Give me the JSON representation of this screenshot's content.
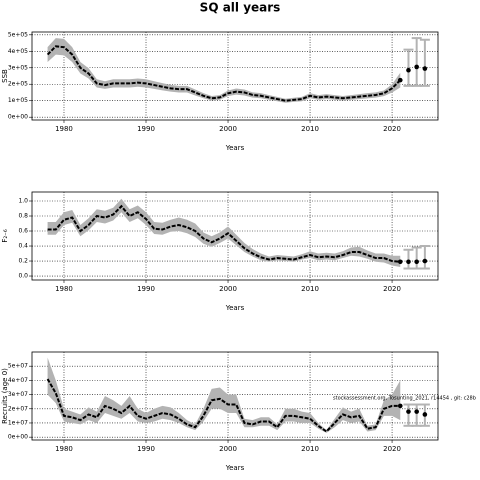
{
  "chart_data": [
    {
      "type": "line",
      "title": "SQ all years",
      "ylabel": "SSB",
      "xlabel": "Years",
      "xlim": [
        1976.1,
        2025.6
      ],
      "xticks": [
        1980,
        1990,
        2000,
        2010,
        2020
      ],
      "ylim": [
        -17000,
        517000
      ],
      "yticks": [
        {
          "value": 0,
          "label": "0e+00"
        },
        {
          "value": 100000,
          "label": "1e+05"
        },
        {
          "value": 200000,
          "label": "2e+05"
        },
        {
          "value": 300000,
          "label": "3e+05"
        },
        {
          "value": 400000,
          "label": "4e+05"
        },
        {
          "value": 500000,
          "label": "5e+05"
        }
      ],
      "grid": true,
      "color": "#000000",
      "band_color": "#b3b3b3",
      "x": [
        1978,
        1979,
        1980,
        1981,
        1982,
        1983,
        1984,
        1985,
        1986,
        1987,
        1988,
        1989,
        1990,
        1991,
        1992,
        1993,
        1994,
        1995,
        1996,
        1997,
        1998,
        1999,
        2000,
        2001,
        2002,
        2003,
        2004,
        2005,
        2006,
        2007,
        2008,
        2009,
        2010,
        2011,
        2012,
        2013,
        2014,
        2015,
        2016,
        2017,
        2018,
        2019,
        2020,
        2021
      ],
      "values": [
        380000.0,
        430000.0,
        425000.0,
        380000.0,
        300000.0,
        265000.0,
        205000.0,
        195000.0,
        205000.0,
        205000.0,
        205000.0,
        210000.0,
        205000.0,
        195000.0,
        185000.0,
        175000.0,
        170000.0,
        170000.0,
        150000.0,
        130000.0,
        115000.0,
        120000.0,
        145000.0,
        155000.0,
        150000.0,
        135000.0,
        130000.0,
        120000.0,
        110000.0,
        100000.0,
        105000.0,
        110000.0,
        130000.0,
        120000.0,
        125000.0,
        120000.0,
        115000.0,
        120000.0,
        125000.0,
        130000.0,
        135000.0,
        145000.0,
        175000.0,
        225000.0
      ],
      "lower": [
        335000.0,
        380000.0,
        375000.0,
        335000.0,
        265000.0,
        235000.0,
        180000.0,
        172000.0,
        180000.0,
        180000.0,
        180000.0,
        185000.0,
        180000.0,
        172000.0,
        163000.0,
        155000.0,
        150000.0,
        150000.0,
        132000.0,
        115000.0,
        101000.0,
        106000.0,
        128000.0,
        137000.0,
        132000.0,
        119000.0,
        115000.0,
        106000.0,
        97000.0,
        88000.0,
        93000.0,
        97000.0,
        115000.0,
        106000.0,
        110000.0,
        106000.0,
        101000.0,
        106000.0,
        110000.0,
        114000.0,
        119000.0,
        128000.0,
        150000.0,
        180000.0
      ],
      "upper": [
        425000.0,
        480000.0,
        475000.0,
        425000.0,
        335000.0,
        297000.0,
        230000.0,
        218000.0,
        230000.0,
        230000.0,
        230000.0,
        235000.0,
        230000.0,
        218000.0,
        207000.0,
        196000.0,
        190000.0,
        190000.0,
        168000.0,
        146000.0,
        129000.0,
        134000.0,
        162000.0,
        174000.0,
        168000.0,
        151000.0,
        146000.0,
        134000.0,
        123000.0,
        112000.0,
        118000.0,
        123000.0,
        146000.0,
        134000.0,
        140000.0,
        134000.0,
        129000.0,
        134000.0,
        140000.0,
        146000.0,
        151000.0,
        162000.0,
        200000.0,
        270000.0
      ],
      "forecast": {
        "x": [
          2021,
          2022,
          2023,
          2024
        ],
        "values": [
          225000.0,
          285000.0,
          305000.0,
          295000.0
        ],
        "lower": [
          null,
          190000.0,
          190000.0,
          190000.0
        ],
        "upper": [
          null,
          410000.0,
          480000.0,
          470000.0
        ]
      }
    },
    {
      "type": "line",
      "ylabel": "F₂₋₆",
      "xlabel": "Years",
      "xlim": [
        1976.1,
        2025.6
      ],
      "xticks": [
        1980,
        1990,
        2000,
        2010,
        2020
      ],
      "ylim": [
        -0.053,
        1.12
      ],
      "yticks": [
        {
          "value": 0,
          "label": "0.0"
        },
        0.2,
        0.4,
        0.6,
        0.8,
        {
          "value": 1,
          "label": "1.0"
        }
      ],
      "grid": true,
      "color": "#000000",
      "band_color": "#b3b3b3",
      "x": [
        1978,
        1979,
        1980,
        1981,
        1982,
        1983,
        1984,
        1985,
        1986,
        1987,
        1988,
        1989,
        1990,
        1991,
        1992,
        1993,
        1994,
        1995,
        1996,
        1997,
        1998,
        1999,
        2000,
        2001,
        2002,
        2003,
        2004,
        2005,
        2006,
        2007,
        2008,
        2009,
        2010,
        2011,
        2012,
        2013,
        2014,
        2015,
        2016,
        2017,
        2018,
        2019,
        2020,
        2021
      ],
      "values": [
        0.62,
        0.62,
        0.75,
        0.78,
        0.6,
        0.68,
        0.8,
        0.78,
        0.82,
        0.93,
        0.8,
        0.85,
        0.76,
        0.63,
        0.62,
        0.66,
        0.68,
        0.65,
        0.6,
        0.5,
        0.45,
        0.5,
        0.57,
        0.47,
        0.37,
        0.3,
        0.25,
        0.22,
        0.24,
        0.23,
        0.22,
        0.25,
        0.28,
        0.25,
        0.26,
        0.25,
        0.28,
        0.32,
        0.32,
        0.28,
        0.24,
        0.24,
        0.2,
        0.19
      ],
      "lower": [
        0.55,
        0.55,
        0.68,
        0.71,
        0.53,
        0.61,
        0.72,
        0.7,
        0.74,
        0.85,
        0.72,
        0.77,
        0.68,
        0.56,
        0.55,
        0.59,
        0.6,
        0.57,
        0.52,
        0.43,
        0.39,
        0.44,
        0.5,
        0.41,
        0.32,
        0.26,
        0.21,
        0.19,
        0.21,
        0.2,
        0.19,
        0.22,
        0.24,
        0.21,
        0.22,
        0.21,
        0.24,
        0.27,
        0.26,
        0.23,
        0.19,
        0.18,
        0.14,
        0.12
      ],
      "upper": [
        0.72,
        0.72,
        0.85,
        0.88,
        0.68,
        0.77,
        0.89,
        0.87,
        0.91,
        1.03,
        0.89,
        0.94,
        0.85,
        0.72,
        0.71,
        0.75,
        0.78,
        0.75,
        0.7,
        0.58,
        0.53,
        0.58,
        0.66,
        0.55,
        0.44,
        0.36,
        0.3,
        0.26,
        0.28,
        0.27,
        0.26,
        0.29,
        0.33,
        0.3,
        0.31,
        0.3,
        0.33,
        0.38,
        0.39,
        0.34,
        0.3,
        0.3,
        0.27,
        0.27
      ],
      "forecast": {
        "x": [
          2021,
          2022,
          2023,
          2024
        ],
        "values": [
          0.19,
          0.19,
          0.19,
          0.2
        ],
        "lower": [
          null,
          0.1,
          0.1,
          0.1
        ],
        "upper": [
          null,
          0.35,
          0.38,
          0.4
        ]
      }
    },
    {
      "type": "line",
      "ylabel": "Recruits (age 0)",
      "xlabel": "Years",
      "annotation": "stockassessment.org, Tosunting_2021, r14454 , git: c28b",
      "xlim": [
        1976.1,
        2025.6
      ],
      "xticks": [
        1980,
        1990,
        2000,
        2010,
        2020
      ],
      "ylim": [
        -2000000,
        60000000
      ],
      "yticks": [
        {
          "value": 0,
          "label": "0e+00"
        },
        {
          "value": 10000000,
          "label": "1e+07"
        },
        {
          "value": 20000000,
          "label": "2e+07"
        },
        {
          "value": 30000000,
          "label": "3e+07"
        },
        {
          "value": 40000000,
          "label": "4e+07"
        },
        {
          "value": 50000000,
          "label": "5e+07"
        }
      ],
      "grid": true,
      "color": "#000000",
      "band_color": "#b3b3b3",
      "x": [
        1978,
        1979,
        1980,
        1981,
        1982,
        1983,
        1984,
        1985,
        1986,
        1987,
        1988,
        1989,
        1990,
        1991,
        1992,
        1993,
        1994,
        1995,
        1996,
        1997,
        1998,
        1999,
        2000,
        2001,
        2002,
        2003,
        2004,
        2005,
        2006,
        2007,
        2008,
        2009,
        2010,
        2011,
        2012,
        2013,
        2014,
        2015,
        2016,
        2017,
        2018,
        2019,
        2020,
        2021
      ],
      "values": [
        41000000.0,
        31000000.0,
        15000000.0,
        14000000.0,
        12000000.0,
        16000000.0,
        14000000.0,
        22000000.0,
        20000000.0,
        17000000.0,
        22000000.0,
        15000000.0,
        13000000.0,
        15000000.0,
        17000000.0,
        16000000.0,
        13000000.0,
        9000000.0,
        7000000.0,
        15000000.0,
        26000000.0,
        27000000.0,
        23000000.0,
        23000000.0,
        10000000.0,
        9000000.0,
        11000000.0,
        11000000.0,
        7000000.0,
        15000000.0,
        15000000.0,
        14000000.0,
        13000000.0,
        8000000.0,
        4000000.0,
        10000000.0,
        16000000.0,
        14000000.0,
        15000000.0,
        6000000.0,
        7000000.0,
        20000000.0,
        22000000.0,
        22000000.0
      ],
      "lower": [
        30000000.0,
        24000000.0,
        11000000.0,
        10000000.0,
        9000000.0,
        12000000.0,
        10000000.0,
        17000000.0,
        15000000.0,
        13000000.0,
        17000000.0,
        11000000.0,
        10000000.0,
        11000000.0,
        13000000.0,
        12000000.0,
        10000000.0,
        7000000.0,
        5000000.0,
        11000000.0,
        20000000.0,
        20000000.0,
        17000000.0,
        17000000.0,
        7000000.0,
        7000000.0,
        8000000.0,
        8000000.0,
        5000000.0,
        11000000.0,
        11000000.0,
        10000000.0,
        10000000.0,
        6000000.0,
        3000000.0,
        7000000.0,
        12000000.0,
        10000000.0,
        11000000.0,
        4000000.0,
        5000000.0,
        15000000.0,
        15000000.0,
        12000000.0
      ],
      "upper": [
        56000000.0,
        40000000.0,
        20000000.0,
        18000000.0,
        16000000.0,
        21000000.0,
        18000000.0,
        29000000.0,
        26000000.0,
        22000000.0,
        29000000.0,
        20000000.0,
        17000000.0,
        20000000.0,
        22000000.0,
        21000000.0,
        17000000.0,
        12000000.0,
        9000000.0,
        20000000.0,
        34000000.0,
        35000000.0,
        30000000.0,
        30000000.0,
        13000000.0,
        12000000.0,
        14000000.0,
        14000000.0,
        9000000.0,
        20000000.0,
        20000000.0,
        18000000.0,
        17000000.0,
        10000000.0,
        5000000.0,
        13000000.0,
        21000000.0,
        18000000.0,
        20000000.0,
        8000000.0,
        9000000.0,
        26000000.0,
        30000000.0,
        40000000.0
      ],
      "forecast": {
        "x": [
          2021,
          2022,
          2023,
          2024
        ],
        "values": [
          22000000.0,
          18000000.0,
          18000000.0,
          16000000.0
        ],
        "lower": [
          null,
          8000000.0,
          8000000.0,
          8000000.0
        ],
        "upper": [
          null,
          23000000.0,
          23000000.0,
          23000000.0
        ]
      }
    }
  ]
}
